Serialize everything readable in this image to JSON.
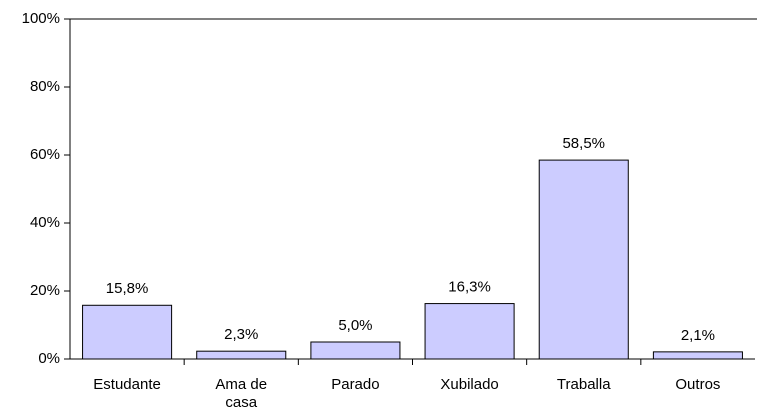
{
  "chart_data": {
    "type": "bar",
    "categories": [
      "Estudante",
      "Ama de casa",
      "Parado",
      "Xubilado",
      "Traballa",
      "Outros"
    ],
    "values": [
      15.8,
      2.3,
      5.0,
      16.3,
      58.5,
      2.1
    ],
    "value_labels": [
      "15,8%",
      "2,3%",
      "5,0%",
      "16,3%",
      "58,5%",
      "2,1%"
    ],
    "color": "#ccccff",
    "ylim": [
      0,
      100
    ],
    "yticks": [
      {
        "value": 0,
        "label": "0%"
      },
      {
        "value": 20,
        "label": "20%"
      },
      {
        "value": 40,
        "label": "40%"
      },
      {
        "value": 60,
        "label": "60%"
      },
      {
        "value": 80,
        "label": "80%"
      },
      {
        "value": 100,
        "label": "100%"
      }
    ],
    "grid": false
  }
}
